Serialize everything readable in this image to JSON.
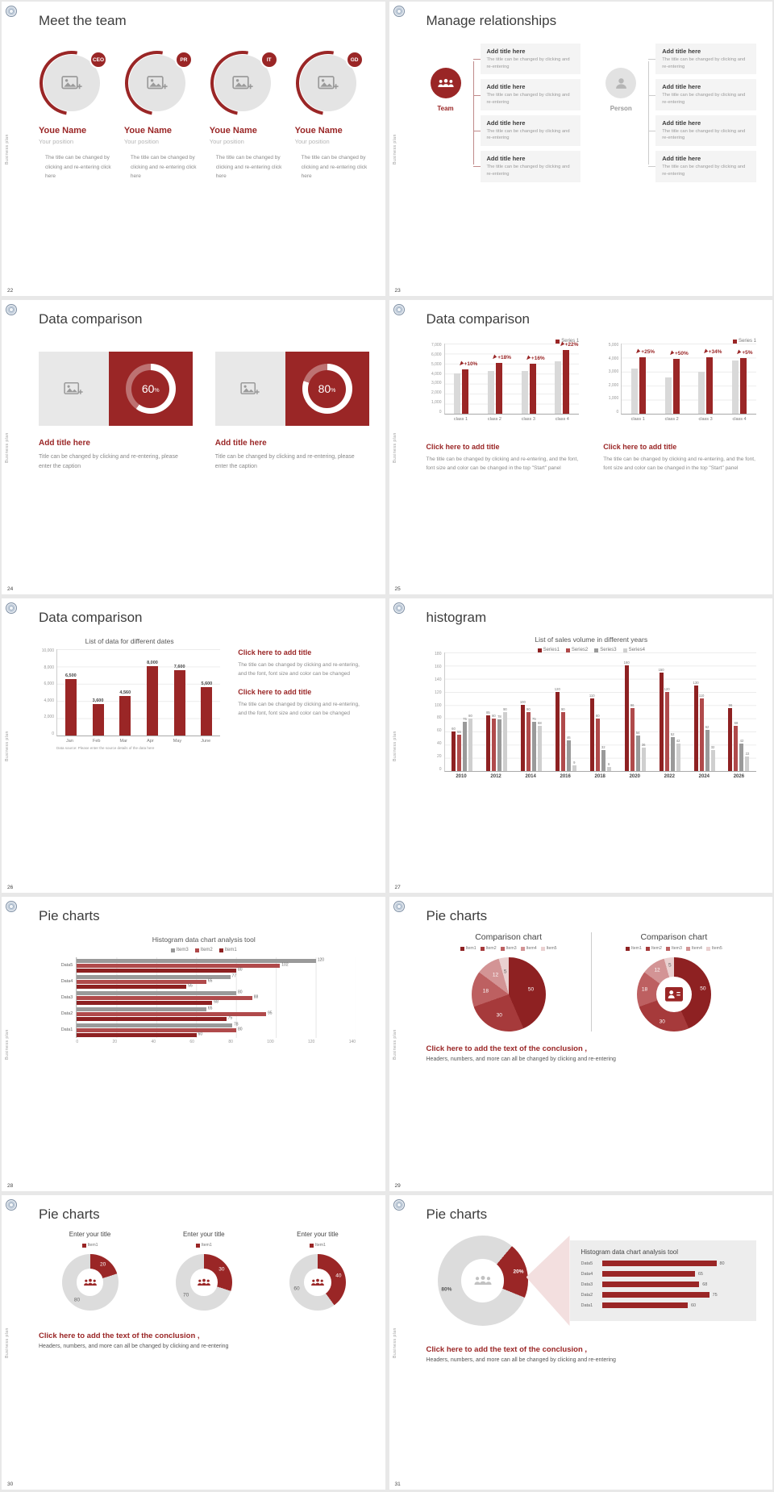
{
  "accent": "#9a2626",
  "gray_bar": "#d9d9d9",
  "common": {
    "side_label": "Business plan",
    "conclusion_title": "Click here to add the text of the conclusion ,",
    "conclusion_body": "Headers, numbers, and more can all be changed by clicking and re-entering"
  },
  "slides": [
    {
      "number": "22",
      "title": "Meet the team",
      "members": [
        {
          "badge": "CEO",
          "name": "Youe Name",
          "position": "Your position",
          "desc": "The title can be changed by clicking and re-entering click here"
        },
        {
          "badge": "PR",
          "name": "Youe Name",
          "position": "Your position",
          "desc": "The title can be changed by clicking and re-entering click here"
        },
        {
          "badge": "IT",
          "name": "Youe Name",
          "position": "Your position",
          "desc": "The title can be changed by clicking and re-entering click here"
        },
        {
          "badge": "GD",
          "name": "Youe Name",
          "position": "Your position",
          "desc": "The title can be changed by clicking and re-entering click here"
        }
      ]
    },
    {
      "number": "23",
      "title": "Manage relationships",
      "groups": [
        {
          "label": "Team",
          "boxes": [
            {
              "title": "Add title here",
              "desc": "The title can be changed by clicking and re-entering"
            },
            {
              "title": "Add title here",
              "desc": "The title can be changed by clicking and re-entering"
            },
            {
              "title": "Add title here",
              "desc": "The title can be changed by clicking and re-entering"
            },
            {
              "title": "Add title here",
              "desc": "The title can be changed by clicking and re-entering"
            }
          ]
        },
        {
          "label": "Person",
          "boxes": [
            {
              "title": "Add title here",
              "desc": "The title can be changed by clicking and re-entering"
            },
            {
              "title": "Add title here",
              "desc": "The title can be changed by clicking and re-entering"
            },
            {
              "title": "Add title here",
              "desc": "The title can be changed by clicking and re-entering"
            },
            {
              "title": "Add title here",
              "desc": "The title can be changed by clicking and re-entering"
            }
          ]
        }
      ]
    },
    {
      "number": "24",
      "title": "Data comparison",
      "cards": [
        {
          "value": 60,
          "label": "60",
          "suffix": "%",
          "title": "Add title here",
          "caption": "Title can be changed by clicking and re-entering, please enter the caption"
        },
        {
          "value": 80,
          "label": "80",
          "suffix": "%",
          "title": "Add title here",
          "caption": "Title can be changed by clicking and re-entering, please enter the caption"
        }
      ]
    },
    {
      "number": "25",
      "title": "Data comparison",
      "charts": [
        {
          "type": "bar",
          "legend": "Series 1",
          "ymax": 7000,
          "yticks": [
            "7,000",
            "6,000",
            "5,000",
            "4,000",
            "3,000",
            "2,000",
            "1,000",
            "0"
          ],
          "categories": [
            "class 1",
            "class 2",
            "class 3",
            "class 4"
          ],
          "base_values": [
            4000,
            4300,
            4300,
            5200
          ],
          "highlight_values": [
            4400,
            5080,
            4990,
            6340
          ],
          "growth_labels": [
            "+10%",
            "+18%",
            "+16%",
            "+22%"
          ]
        },
        {
          "type": "bar",
          "legend": "Series 1",
          "ymax": 5000,
          "yticks": [
            "5,000",
            "4,000",
            "3,000",
            "2,000",
            "1,000",
            "0"
          ],
          "categories": [
            "class 1",
            "class 2",
            "class 3",
            "class 4"
          ],
          "base_values": [
            3200,
            2600,
            3000,
            3800
          ],
          "highlight_values": [
            4000,
            3900,
            4020,
            3990
          ],
          "growth_labels": [
            "+25%",
            "+50%",
            "+34%",
            "+5%"
          ]
        }
      ],
      "sections": [
        {
          "title": "Click here to add title",
          "body": "The title can be changed by clicking and re-entering, and the font, font size and color can be changed in the top \"Start\" panel"
        },
        {
          "title": "Click here to add title",
          "body": "The title can be changed by clicking and re-entering, and the font, font size and color can be changed in the top \"Start\" panel"
        }
      ]
    },
    {
      "number": "26",
      "title": "Data comparison",
      "chart": {
        "type": "bar",
        "title": "List of data for different dates",
        "ymax": 10000,
        "yticks": [
          "10,000",
          "8,000",
          "6,000",
          "4,000",
          "2,000",
          "0"
        ],
        "categories": [
          "Jan",
          "Feb",
          "Mar",
          "Apr",
          "May",
          "June"
        ],
        "values": [
          6500,
          3600,
          4560,
          8000,
          7600,
          5600
        ],
        "value_labels": [
          "6,500",
          "3,600",
          "4,560",
          "8,000",
          "7,600",
          "5,600"
        ],
        "source": "Data source: Please enter the source details of the data here"
      },
      "sections": [
        {
          "title": "Click here to add title",
          "body": "The title can be changed by clicking and re-entering, and the font, font size and color can be changed"
        },
        {
          "title": "Click here to add title",
          "body": "The title can be changed by clicking and re-entering, and the font, font size and color can be changed"
        }
      ]
    },
    {
      "number": "27",
      "title": "histogram",
      "chart": {
        "type": "bar",
        "title": "List of sales volume in different years",
        "colors": [
          "#8e2122",
          "#b04a4b",
          "#9a9a9a",
          "#cfcfcf"
        ],
        "ymax": 180,
        "yticks": [
          "180",
          "160",
          "140",
          "120",
          "100",
          "80",
          "60",
          "40",
          "20",
          "0"
        ],
        "categories": [
          "2010",
          "2012",
          "2014",
          "2016",
          "2018",
          "2020",
          "2022",
          "2024",
          "2026"
        ],
        "series": [
          {
            "name": "Series1",
            "values": [
              60,
              85,
              100,
              120,
              110,
              160,
              150,
              130,
              96
            ]
          },
          {
            "name": "Series2",
            "values": [
              55,
              80,
              90,
              90,
              80,
              96,
              120,
              110,
              68
            ]
          },
          {
            "name": "Series3",
            "values": [
              75,
              78,
              75,
              46,
              32,
              54,
              52,
              62,
              42
            ]
          },
          {
            "name": "Series4",
            "values": [
              80,
              90,
              68,
              9,
              6,
              36,
              42,
              32,
              22
            ]
          }
        ]
      }
    },
    {
      "number": "28",
      "title": "Pie charts",
      "chart": {
        "type": "hbar",
        "title": "Histogram data chart analysis tool",
        "xmax": 140,
        "xticks": [
          "0",
          "20",
          "40",
          "60",
          "80",
          "100",
          "120",
          "140"
        ],
        "categories": [
          "Data5",
          "Data4",
          "Data3",
          "Data2",
          "Data1"
        ],
        "series": [
          {
            "name": "Item3",
            "color": "#9a9a9a",
            "values": [
              120,
              77,
              80,
              65,
              78
            ]
          },
          {
            "name": "Item2",
            "color": "#b04a4b",
            "values": [
              102,
              65,
              88,
              95,
              80
            ]
          },
          {
            "name": "Item1",
            "color": "#8e2122",
            "values": [
              80,
              55,
              68,
              75,
              60
            ]
          }
        ]
      }
    },
    {
      "number": "29",
      "title": "Pie charts",
      "legend": [
        "Item1",
        "Item2",
        "Item3",
        "Item4",
        "Item5"
      ],
      "values": [
        50,
        30,
        18,
        12,
        5
      ],
      "colors": [
        "#8e2122",
        "#a63a3b",
        "#bd6061",
        "#d39495",
        "#ead0d0"
      ],
      "label_colors": [
        "#fff",
        "#fff",
        "#fff",
        "#fff",
        "#666"
      ],
      "charts": [
        {
          "type": "pie",
          "title": "Comparison chart"
        },
        {
          "type": "donut",
          "title": "Comparison chart"
        }
      ]
    },
    {
      "number": "30",
      "title": "Pie charts",
      "donuts": [
        {
          "type": "donut",
          "title": "Enter your title",
          "legend": "Item1",
          "value": 20,
          "rest": 80
        },
        {
          "type": "donut",
          "title": "Enter your title",
          "legend": "Item1",
          "value": 30,
          "rest": 70
        },
        {
          "type": "donut",
          "title": "Enter your title",
          "legend": "Item1",
          "value": 40,
          "rest": 60
        }
      ]
    },
    {
      "number": "31",
      "title": "Pie charts",
      "donut": {
        "type": "donut",
        "slice_value": 20,
        "slice_label": "20%",
        "rest_label": "80%"
      },
      "panel": {
        "type": "hbar",
        "title": "Histogram data chart analysis tool",
        "categories": [
          "Data5",
          "Data4",
          "Data3",
          "Data2",
          "Data1"
        ],
        "values": [
          80,
          65,
          68,
          75,
          60
        ]
      }
    }
  ]
}
